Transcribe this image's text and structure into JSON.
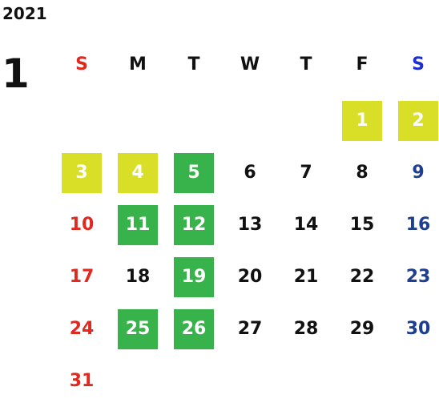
{
  "year": "2021",
  "month": "1",
  "colors": {
    "sunday": "#e02a20",
    "saturday": "#1e3f8f",
    "weekday": "#111111",
    "highlight_yellow": "#d8df26",
    "highlight_green": "#38b24a"
  },
  "weekdays": [
    {
      "label": "S",
      "color": "#e02a20"
    },
    {
      "label": "M",
      "color": "#111111"
    },
    {
      "label": "T",
      "color": "#111111"
    },
    {
      "label": "W",
      "color": "#111111"
    },
    {
      "label": "T",
      "color": "#111111"
    },
    {
      "label": "F",
      "color": "#111111"
    },
    {
      "label": "S",
      "color": "#1d2fd0"
    }
  ],
  "first_weekday_index": 5,
  "days": [
    {
      "label": "1",
      "highlight": "yellow"
    },
    {
      "label": "2",
      "highlight": "yellow"
    },
    {
      "label": "3",
      "highlight": "yellow"
    },
    {
      "label": "4",
      "highlight": "yellow"
    },
    {
      "label": "5",
      "highlight": "green"
    },
    {
      "label": "6",
      "highlight": ""
    },
    {
      "label": "7",
      "highlight": ""
    },
    {
      "label": "8",
      "highlight": ""
    },
    {
      "label": "9",
      "highlight": ""
    },
    {
      "label": "10",
      "highlight": ""
    },
    {
      "label": "11",
      "highlight": "green"
    },
    {
      "label": "12",
      "highlight": "green"
    },
    {
      "label": "13",
      "highlight": ""
    },
    {
      "label": "14",
      "highlight": ""
    },
    {
      "label": "15",
      "highlight": ""
    },
    {
      "label": "16",
      "highlight": ""
    },
    {
      "label": "17",
      "highlight": ""
    },
    {
      "label": "18",
      "highlight": ""
    },
    {
      "label": "19",
      "highlight": "green"
    },
    {
      "label": "20",
      "highlight": ""
    },
    {
      "label": "21",
      "highlight": ""
    },
    {
      "label": "22",
      "highlight": ""
    },
    {
      "label": "23",
      "highlight": ""
    },
    {
      "label": "24",
      "highlight": ""
    },
    {
      "label": "25",
      "highlight": "green"
    },
    {
      "label": "26",
      "highlight": "green"
    },
    {
      "label": "27",
      "highlight": ""
    },
    {
      "label": "28",
      "highlight": ""
    },
    {
      "label": "29",
      "highlight": ""
    },
    {
      "label": "30",
      "highlight": ""
    },
    {
      "label": "31",
      "highlight": ""
    }
  ]
}
